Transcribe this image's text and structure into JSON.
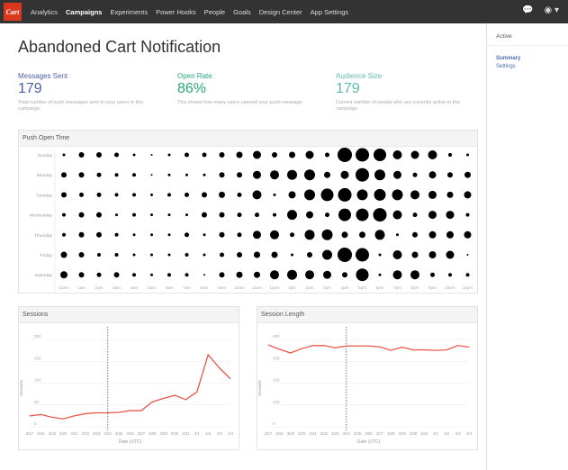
{
  "nav": {
    "logo": "Cart",
    "items": [
      "Analytics",
      "Campaigns",
      "Experiments",
      "Power Hooks",
      "People",
      "Goals",
      "Design Center",
      "App Settings"
    ],
    "active": "Campaigns",
    "icons": [
      "chat-icon",
      "user-icon"
    ]
  },
  "sidebar": {
    "status": "Active",
    "links": [
      "Summary",
      "Settings"
    ]
  },
  "page_title": "Abandoned Cart Notification",
  "stats": [
    {
      "label": "Messages Sent",
      "value": "179",
      "desc": "Total number of push messages sent to your users in this campaign.",
      "color": "#4a5fa8"
    },
    {
      "label": "Open Rate",
      "value": "86%",
      "desc": "This shows how many users opened your push message.",
      "color": "#2aa57e"
    },
    {
      "label": "Audience Size",
      "value": "179",
      "desc": "Current number of people who are currently active in this campaign.",
      "color": "#5cbcae"
    }
  ],
  "chart_data": [
    {
      "type": "scatter",
      "title": "Push Open Time",
      "rows": [
        "Sunday",
        "Monday",
        "Tuesday",
        "Wednesday",
        "Thursday",
        "Friday",
        "Saturday"
      ],
      "columns": [
        "12am",
        "1am",
        "2am",
        "3am",
        "4am",
        "5am",
        "6am",
        "7am",
        "8am",
        "9am",
        "10am",
        "11am",
        "12pm",
        "1pm",
        "2pm",
        "3pm",
        "4pm",
        "5pm",
        "6pm",
        "7pm",
        "8pm",
        "9pm",
        "10pm",
        "11pm"
      ],
      "relative_size": [
        [
          1.5,
          3,
          3,
          2.5,
          1.5,
          1,
          1.5,
          2.5,
          2.5,
          3,
          3.5,
          4.5,
          3,
          3.5,
          4.5,
          2.5,
          8,
          7.5,
          7,
          5,
          4.5,
          5,
          2,
          1.5
        ],
        [
          3,
          3,
          2.5,
          2,
          2,
          1,
          1.5,
          1.5,
          1.5,
          3,
          3,
          4.5,
          5,
          5.5,
          6,
          3.5,
          4.5,
          7.5,
          6,
          4.5,
          2.5,
          4,
          3,
          3.5
        ],
        [
          3,
          2.5,
          2.5,
          2,
          2,
          1.5,
          2,
          2.5,
          3,
          3.5,
          2.5,
          5,
          1.5,
          4,
          6,
          7,
          7.5,
          6,
          6.5,
          6,
          5,
          4.5,
          3.5,
          4
        ],
        [
          2,
          3,
          3,
          1.5,
          2,
          1.5,
          1.5,
          1.5,
          3,
          3,
          2.5,
          2.5,
          2,
          5.5,
          4,
          2.5,
          7,
          7,
          7.5,
          5,
          2.5,
          4.5,
          4.5,
          2
        ],
        [
          2,
          3,
          3,
          2,
          1.5,
          1.5,
          1.5,
          2.5,
          1.5,
          3,
          2.5,
          4.5,
          5,
          2.5,
          5.5,
          6,
          3.5,
          3.5,
          5.5,
          1.5,
          3,
          4,
          4,
          4
        ],
        [
          3.5,
          3,
          2,
          2,
          1.5,
          1.5,
          1.5,
          2,
          1.5,
          2.5,
          3,
          3.5,
          3.5,
          1.5,
          3,
          5.5,
          8,
          7.5,
          1.5,
          5,
          3.5,
          4,
          4.5,
          1
        ],
        [
          4,
          3,
          2.5,
          3,
          2,
          1.5,
          2,
          2,
          1,
          3,
          3.5,
          3.5,
          5,
          5.5,
          5,
          4.5,
          3,
          7,
          1.5,
          5,
          5,
          2.5,
          2,
          2
        ]
      ],
      "color": "#000000"
    },
    {
      "type": "line",
      "title": "Sessions",
      "xlabel": "Date (UTC)",
      "ylabel": "Sessions",
      "ylim": [
        0,
        200
      ],
      "yticks": [
        0,
        50,
        100,
        150,
        200
      ],
      "x": [
        "3/17",
        "3/18",
        "3/19",
        "3/20",
        "3/21",
        "3/22",
        "3/23",
        "3/24",
        "3/25",
        "3/26",
        "3/27",
        "3/28",
        "3/29",
        "3/30",
        "3/31",
        "4/1",
        "4/2",
        "4/3",
        "4/4"
      ],
      "values": [
        25,
        28,
        22,
        18,
        25,
        30,
        32,
        32,
        33,
        37,
        37,
        57,
        65,
        72,
        62,
        80,
        165,
        135,
        110
      ],
      "marker_x": "3/24",
      "color": "#e8574a"
    },
    {
      "type": "line",
      "title": "Session Length",
      "xlabel": "Date (UTC)",
      "ylabel": "Seconds",
      "ylim": [
        0,
        400
      ],
      "yticks": [
        0,
        100,
        200,
        300,
        400
      ],
      "x": [
        "3/17",
        "3/18",
        "3/19",
        "3/20",
        "3/21",
        "3/22",
        "3/23",
        "3/24",
        "3/25",
        "3/26",
        "3/27",
        "3/28",
        "3/29",
        "3/30",
        "3/31",
        "4/1",
        "4/2",
        "4/3",
        "4/4"
      ],
      "values": [
        375,
        355,
        338,
        358,
        372,
        372,
        362,
        370,
        370,
        370,
        366,
        350,
        365,
        352,
        352,
        350,
        352,
        372,
        365
      ],
      "marker_x": "3/24",
      "color": "#e8574a"
    }
  ]
}
